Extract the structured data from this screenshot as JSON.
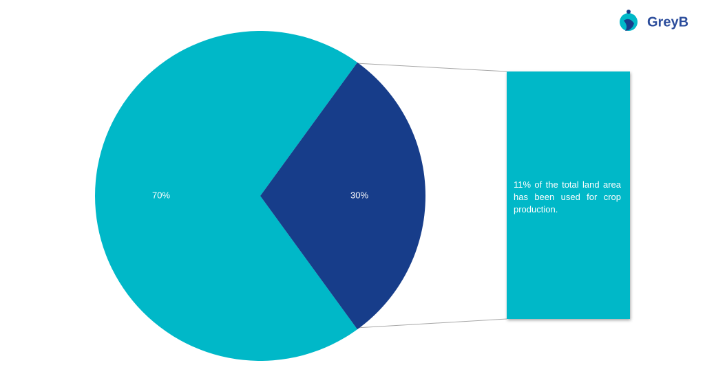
{
  "brand": {
    "logo_text": "GreyB"
  },
  "chart_data": {
    "type": "pie",
    "values": [
      70,
      30
    ],
    "value_labels": [
      "70%",
      "30%"
    ],
    "colors": [
      "#00b8c8",
      "#173d8a"
    ],
    "annotation": "11% of the total land area has been used for crop production."
  }
}
